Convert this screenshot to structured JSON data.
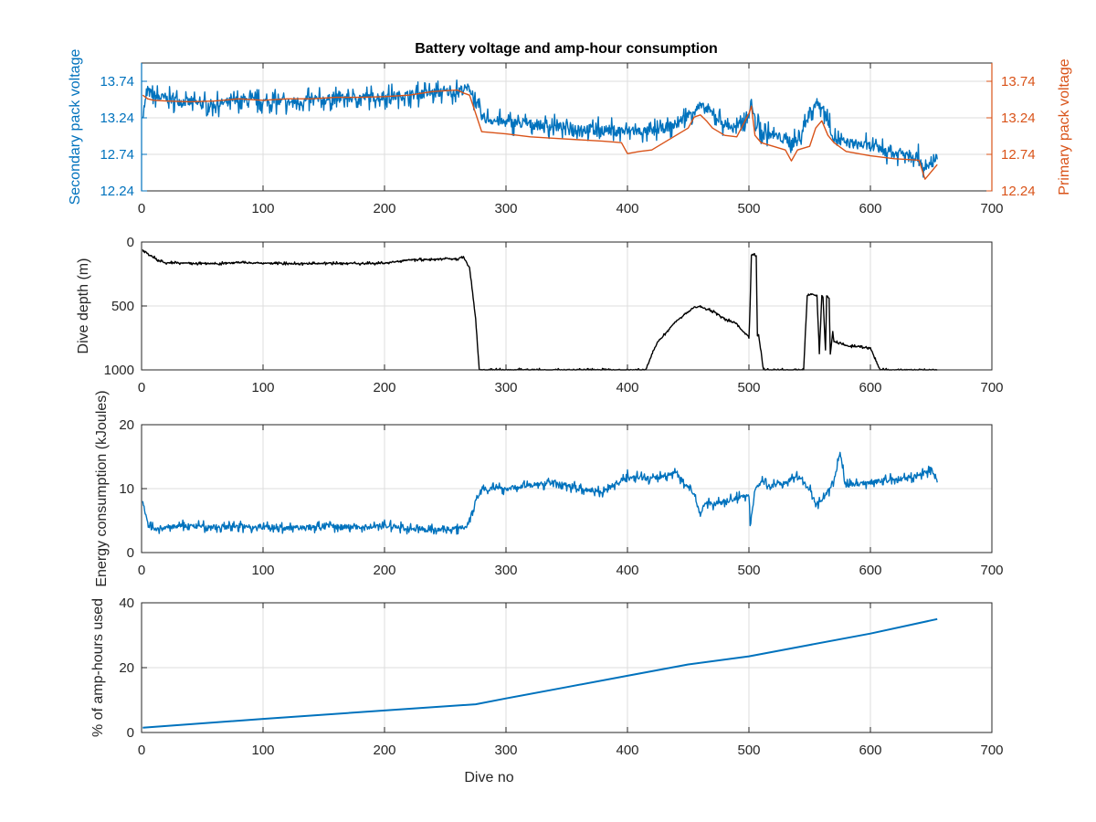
{
  "figure": {
    "title": "Battery voltage and amp-hour consumption",
    "colors": {
      "blue": "#0072BD",
      "orange": "#D95319",
      "black": "#000000",
      "grid": "#dddddd",
      "axis": "#262626"
    }
  },
  "chart_data": [
    {
      "id": "voltage",
      "type": "line",
      "title": "Battery voltage and amp-hour consumption",
      "xlabel": "",
      "ylabel_left": "Secondary pack voltage",
      "ylabel_right": "Primary pack voltage",
      "xlim": [
        0,
        700
      ],
      "ylim": [
        12.24,
        13.99
      ],
      "xticks": [
        0,
        100,
        200,
        300,
        400,
        500,
        600,
        700
      ],
      "yticks": [
        12.24,
        12.74,
        13.24,
        13.74
      ],
      "ytick_labels": [
        "12.24",
        "12.74",
        "13.24",
        "13.74"
      ],
      "grid": true,
      "series": [
        {
          "axis": "left",
          "color": "#0072BD",
          "noisy": true,
          "amp": 0.11,
          "x": [
            1,
            5,
            10,
            20,
            40,
            60,
            80,
            100,
            120,
            140,
            160,
            180,
            200,
            220,
            240,
            260,
            270,
            275,
            280,
            290,
            300,
            320,
            340,
            360,
            380,
            400,
            420,
            440,
            455,
            460,
            470,
            480,
            490,
            500,
            502,
            505,
            510,
            520,
            530,
            540,
            550,
            555,
            560,
            565,
            570,
            580,
            600,
            610,
            620,
            630,
            640,
            645,
            650,
            655
          ],
          "y": [
            13.3,
            13.6,
            13.55,
            13.5,
            13.45,
            13.42,
            13.48,
            13.46,
            13.45,
            13.48,
            13.5,
            13.52,
            13.53,
            13.55,
            13.58,
            13.6,
            13.65,
            13.45,
            13.25,
            13.2,
            13.18,
            13.15,
            13.12,
            13.1,
            13.08,
            13.06,
            13.05,
            13.15,
            13.35,
            13.4,
            13.3,
            13.15,
            13.1,
            13.3,
            13.45,
            13.2,
            13.05,
            13.0,
            12.95,
            12.9,
            13.3,
            13.45,
            13.4,
            13.2,
            12.95,
            12.9,
            12.85,
            12.8,
            12.75,
            12.78,
            12.7,
            12.5,
            12.6,
            12.7
          ]
        },
        {
          "axis": "right",
          "color": "#D95319",
          "noisy": false,
          "x": [
            1,
            5,
            10,
            20,
            40,
            60,
            80,
            100,
            120,
            140,
            160,
            180,
            200,
            220,
            240,
            260,
            265,
            270,
            275,
            280,
            300,
            320,
            340,
            360,
            380,
            395,
            400,
            410,
            420,
            430,
            440,
            450,
            455,
            460,
            465,
            470,
            480,
            490,
            500,
            502,
            505,
            510,
            520,
            530,
            535,
            540,
            550,
            555,
            560,
            565,
            570,
            580,
            600,
            610,
            620,
            630,
            640,
            645,
            650,
            655
          ],
          "y": [
            13.55,
            13.5,
            13.48,
            13.47,
            13.46,
            13.47,
            13.5,
            13.48,
            13.5,
            13.5,
            13.52,
            13.52,
            13.53,
            13.55,
            13.6,
            13.62,
            13.58,
            13.55,
            13.3,
            13.05,
            13.02,
            12.98,
            12.96,
            12.94,
            12.92,
            12.9,
            12.75,
            12.78,
            12.8,
            12.9,
            13.0,
            13.1,
            13.25,
            13.28,
            13.2,
            13.1,
            13.0,
            12.98,
            13.3,
            13.4,
            13.0,
            12.9,
            12.85,
            12.8,
            12.65,
            12.8,
            12.85,
            13.1,
            13.2,
            13.0,
            12.9,
            12.78,
            12.72,
            12.7,
            12.68,
            12.67,
            12.66,
            12.4,
            12.5,
            12.6
          ]
        }
      ]
    },
    {
      "id": "depth",
      "type": "line",
      "xlabel": "",
      "ylabel": "Dive depth (m)",
      "xlim": [
        0,
        700
      ],
      "ylim": [
        0,
        1000
      ],
      "y_reversed": true,
      "xticks": [
        0,
        100,
        200,
        300,
        400,
        500,
        600,
        700
      ],
      "yticks": [
        0,
        500,
        1000
      ],
      "ytick_labels": [
        "0",
        "500",
        "1000"
      ],
      "grid": true,
      "series": [
        {
          "color": "#000000",
          "noisy": true,
          "amp": 8,
          "x": [
            1,
            5,
            10,
            15,
            20,
            40,
            60,
            80,
            100,
            120,
            140,
            160,
            180,
            200,
            220,
            240,
            260,
            265,
            270,
            275,
            278,
            280,
            300,
            350,
            400,
            415,
            420,
            425,
            440,
            455,
            460,
            470,
            480,
            490,
            495,
            500,
            501,
            502,
            504,
            506,
            507,
            508,
            512,
            515,
            545,
            548,
            552,
            555,
            556,
            558,
            560,
            561,
            563,
            564,
            566,
            567,
            569,
            570,
            575,
            580,
            590,
            600,
            608,
            612,
            620,
            650,
            655
          ],
          "y": [
            60,
            90,
            120,
            150,
            160,
            165,
            170,
            160,
            165,
            168,
            170,
            165,
            168,
            165,
            140,
            135,
            130,
            120,
            200,
            600,
            1000,
            1000,
            1000,
            1000,
            1000,
            1000,
            880,
            780,
            620,
            510,
            505,
            540,
            600,
            640,
            700,
            740,
            500,
            100,
            100,
            100,
            730,
            730,
            1000,
            1000,
            1000,
            420,
            410,
            415,
            420,
            870,
            420,
            430,
            850,
            420,
            440,
            880,
            700,
            780,
            790,
            810,
            820,
            830,
            1000,
            1000,
            1000,
            1000,
            1000
          ]
        }
      ]
    },
    {
      "id": "energy",
      "type": "line",
      "xlabel": "",
      "ylabel": "Energy consumption (kJoules)",
      "xlim": [
        0,
        700
      ],
      "ylim": [
        0,
        20
      ],
      "xticks": [
        0,
        100,
        200,
        300,
        400,
        500,
        600,
        700
      ],
      "yticks": [
        0,
        10,
        20
      ],
      "ytick_labels": [
        "0",
        "10",
        "20"
      ],
      "grid": true,
      "series": [
        {
          "color": "#0072BD",
          "noisy": true,
          "amp": 0.6,
          "x": [
            1,
            3,
            6,
            10,
            15,
            20,
            40,
            60,
            80,
            100,
            120,
            140,
            160,
            180,
            200,
            220,
            240,
            260,
            268,
            275,
            280,
            300,
            320,
            340,
            360,
            380,
            400,
            420,
            440,
            455,
            460,
            465,
            470,
            480,
            490,
            500,
            501,
            505,
            510,
            520,
            530,
            540,
            550,
            555,
            560,
            570,
            575,
            580,
            600,
            620,
            640,
            650,
            655
          ],
          "y": [
            8,
            6,
            4,
            3.8,
            3.5,
            4,
            4.2,
            3.9,
            4.1,
            4,
            3.8,
            4,
            4.1,
            4,
            4.2,
            3.7,
            3.5,
            3.8,
            4.2,
            8,
            10,
            10,
            10.5,
            11,
            10,
            9.5,
            12,
            11.5,
            12.5,
            9,
            6,
            8,
            7.5,
            8,
            8.5,
            9,
            4,
            10,
            11,
            10.5,
            11,
            12,
            10,
            7.5,
            8,
            11,
            15.5,
            10.5,
            11,
            11.5,
            12,
            13,
            11
          ]
        }
      ]
    },
    {
      "id": "amphours",
      "type": "line",
      "xlabel": "Dive no",
      "ylabel": "% of amp-hours used",
      "xlim": [
        0,
        700
      ],
      "ylim": [
        0,
        40
      ],
      "xticks": [
        0,
        100,
        200,
        300,
        400,
        500,
        600,
        700
      ],
      "yticks": [
        0,
        20,
        40
      ],
      "ytick_labels": [
        "0",
        "20",
        "40"
      ],
      "grid": true,
      "series": [
        {
          "color": "#0072BD",
          "noisy": false,
          "x": [
            1,
            100,
            200,
            275,
            300,
            350,
            400,
            450,
            500,
            550,
            600,
            655
          ],
          "y": [
            1.5,
            4.2,
            6.8,
            8.7,
            10.5,
            14,
            17.5,
            21,
            23.5,
            27,
            30.5,
            35
          ]
        }
      ]
    }
  ]
}
